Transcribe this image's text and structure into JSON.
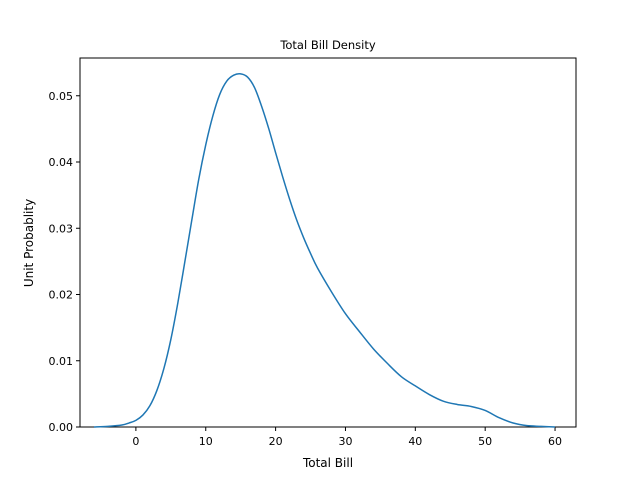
{
  "chart_data": {
    "type": "line",
    "title": "Total Bill Density",
    "xlabel": "Total Bill",
    "ylabel": "Unit Probablity",
    "xlim": [
      -8,
      63
    ],
    "ylim": [
      0,
      0.0557
    ],
    "xticks": [
      0,
      10,
      20,
      30,
      40,
      50,
      60
    ],
    "xtick_labels": [
      "0",
      "10",
      "20",
      "30",
      "40",
      "50",
      "60"
    ],
    "yticks": [
      0,
      0.01,
      0.02,
      0.03,
      0.04,
      0.05
    ],
    "ytick_labels": [
      "0.00",
      "0.01",
      "0.02",
      "0.03",
      "0.04",
      "0.05"
    ],
    "grid": false,
    "color": "#1f77b4",
    "series": [
      {
        "x": [
          -6,
          -4,
          -2,
          -1,
          0,
          1,
          2,
          3,
          4,
          5,
          6,
          7,
          8,
          9,
          10,
          11,
          12,
          13,
          14,
          15,
          16,
          17,
          18,
          19,
          20,
          21,
          22,
          23,
          24,
          25,
          26,
          28,
          30,
          32,
          34,
          36,
          38,
          40,
          42,
          44,
          46,
          48,
          50,
          52,
          54,
          56,
          58,
          60
        ],
        "y": [
          0.0,
          0.0001,
          0.0003,
          0.0006,
          0.001,
          0.0018,
          0.0032,
          0.0055,
          0.0088,
          0.0132,
          0.0187,
          0.0249,
          0.0312,
          0.0374,
          0.0426,
          0.0469,
          0.0502,
          0.0522,
          0.0531,
          0.0533,
          0.0528,
          0.0512,
          0.0484,
          0.0451,
          0.0414,
          0.0378,
          0.0344,
          0.0313,
          0.0286,
          0.0262,
          0.024,
          0.0204,
          0.0171,
          0.0144,
          0.0118,
          0.0096,
          0.0076,
          0.0062,
          0.0049,
          0.0039,
          0.0034,
          0.0031,
          0.0025,
          0.0014,
          0.0006,
          0.0002,
          0.0001,
          0.0
        ]
      }
    ]
  }
}
